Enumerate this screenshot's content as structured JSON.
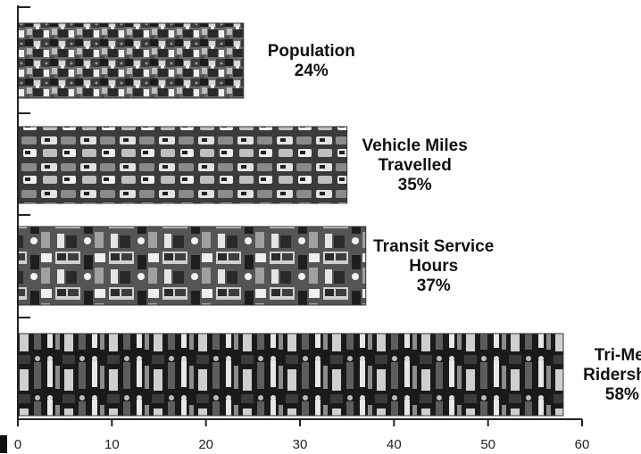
{
  "chart_data": {
    "type": "bar",
    "orientation": "horizontal",
    "title": "",
    "xlabel": "",
    "ylabel": "",
    "xlim": [
      0,
      60
    ],
    "x_ticks": [
      "0",
      "10",
      "20",
      "30",
      "40",
      "50",
      "60"
    ],
    "categories": [
      {
        "label_lines": [
          "Population",
          "24%"
        ],
        "value": 24
      },
      {
        "label_lines": [
          "Vehicle Miles",
          "Travelled",
          "35%"
        ],
        "value": 35
      },
      {
        "label_lines": [
          "Transit Service",
          "Hours",
          "37%"
        ],
        "value": 37
      },
      {
        "label_lines": [
          "Tri-Met",
          "Ridership",
          "58%"
        ],
        "value": 58
      }
    ],
    "bar_fill": "photographic-black-and-white",
    "grid": false
  }
}
